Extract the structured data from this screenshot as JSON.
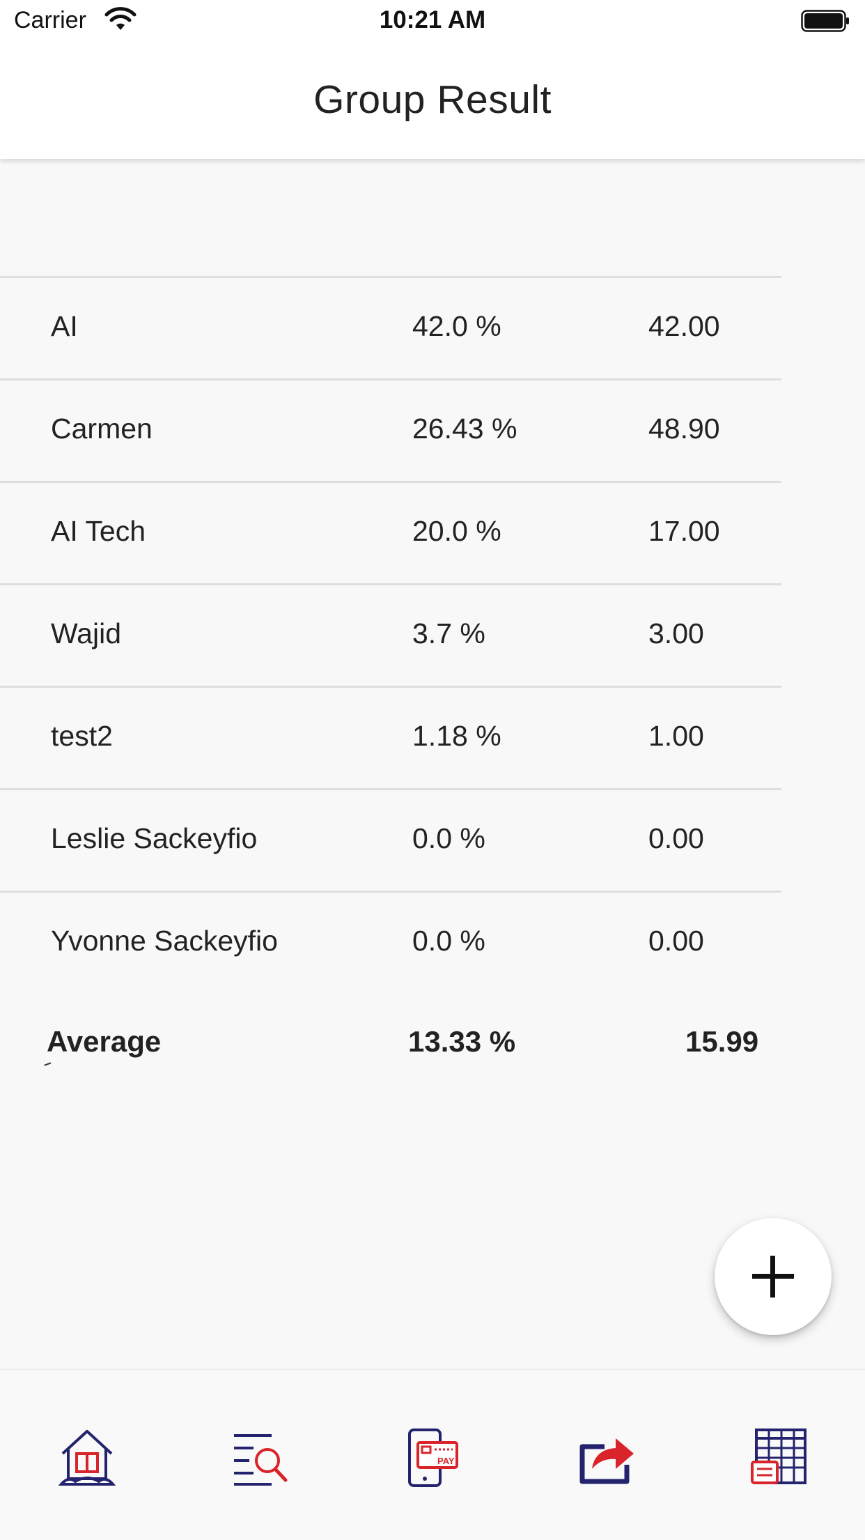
{
  "status_bar": {
    "carrier": "Carrier",
    "time": "10:21 AM"
  },
  "header": {
    "title": "Group Result"
  },
  "results": [
    {
      "name": "AI",
      "percent": "42.0 %",
      "value": "42.00"
    },
    {
      "name": "Carmen",
      "percent": "26.43 %",
      "value": "48.90"
    },
    {
      "name": "AI Tech",
      "percent": "20.0 %",
      "value": "17.00"
    },
    {
      "name": "Wajid",
      "percent": "3.7 %",
      "value": "3.00"
    },
    {
      "name": "test2",
      "percent": "1.18 %",
      "value": "1.00"
    },
    {
      "name": "Leslie Sackeyfio",
      "percent": "0.0 %",
      "value": "0.00"
    },
    {
      "name": "Yvonne Sackeyfio",
      "percent": "0.0 %",
      "value": "0.00"
    }
  ],
  "average": {
    "label": "Average",
    "percent": "13.33 %",
    "value": "15.99"
  },
  "fab": {
    "icon": "plus-icon"
  },
  "bottom_nav": {
    "items": [
      {
        "icon": "home-icon"
      },
      {
        "icon": "search-list-icon"
      },
      {
        "icon": "mobile-pay-icon"
      },
      {
        "icon": "share-icon"
      },
      {
        "icon": "spreadsheet-icon"
      }
    ],
    "pay_badge": "PAY"
  },
  "colors": {
    "navy": "#23236e",
    "red": "#d8242a",
    "background": "#f8f8f8"
  }
}
